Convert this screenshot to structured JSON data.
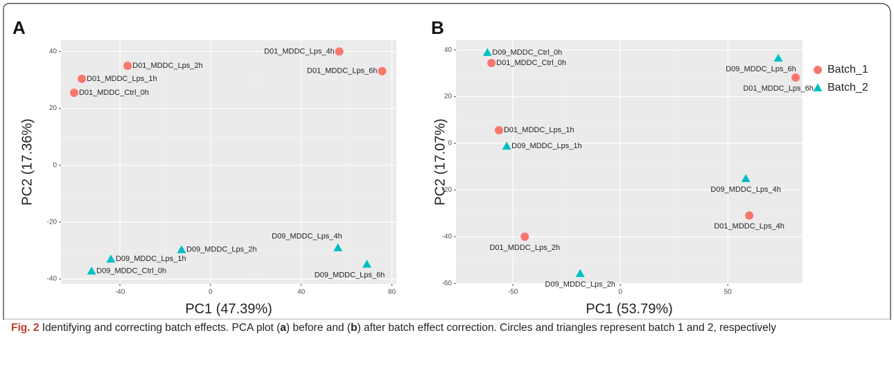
{
  "chart_data": [
    {
      "type": "scatter",
      "panel": "A",
      "xlabel": "PC1 (47.39%)",
      "ylabel": "PC2 (17.36%)",
      "xlim": [
        -66,
        82
      ],
      "ylim": [
        -41.7,
        44
      ],
      "xticks": [
        -40,
        0,
        40,
        80
      ],
      "yticks": [
        -40,
        -20,
        0,
        20,
        40
      ],
      "grid": true,
      "series": [
        {
          "color": "#f8766d",
          "marker": "circle",
          "x": [
            56.8,
            75.7,
            -36.6,
            -56.8,
            -60.2
          ],
          "values": [
            40,
            33.1,
            35,
            30.4,
            25.5
          ],
          "labels": [
            "D01_MDDC_Lps_4h",
            "D01_MDDC_Lps_6h",
            "D01_MDDC_Lps_2h",
            "D01_MDDC_Lps_1h",
            "D01_MDDC_Ctrl_0h"
          ]
        },
        {
          "color": "#00bfc4",
          "marker": "triangle",
          "x": [
            56.2,
            69,
            -12.8,
            -44,
            -52.5
          ],
          "values": [
            -29,
            -34.8,
            -29.7,
            -33,
            -37.2
          ],
          "labels": [
            "D09_MDDC_Lps_4h",
            "D09_MDDC_Lps_6h",
            "D09_MDDC_Lps_2h",
            "D09_MDDC_Lps_1h",
            "D09_MDDC_Ctrl_0h"
          ]
        }
      ]
    },
    {
      "type": "scatter",
      "panel": "B",
      "xlabel": "PC1 (53.79%)",
      "ylabel": "PC2 (17.07%)",
      "xlim": [
        -76.5,
        84.8
      ],
      "ylim": [
        -60.2,
        44.2
      ],
      "xticks": [
        -50,
        0,
        50
      ],
      "yticks": [
        -60,
        -40,
        -20,
        0,
        20,
        40
      ],
      "grid": true,
      "legend": "right",
      "series": [
        {
          "name": "Batch_1",
          "color": "#f8766d",
          "marker": "circle",
          "x": [
            -60,
            -56.5,
            -44.5,
            60,
            81.6
          ],
          "values": [
            34.4,
            5.6,
            -40,
            -30.9,
            28.2
          ],
          "labels": [
            "D01_MDDC_Ctrl_0h",
            "D01_MDDC_Lps_1h",
            "D01_MDDC_Lps_2h",
            "D01_MDDC_Lps_4h",
            "D01_MDDC_Lps_6h"
          ]
        },
        {
          "name": "Batch_2",
          "color": "#00bfc4",
          "marker": "triangle",
          "x": [
            -61.9,
            -52.9,
            -18.7,
            58.4,
            73.5
          ],
          "values": [
            38.9,
            -1.2,
            -55.8,
            -15.1,
            36.5
          ],
          "labels": [
            "D09_MDDC_Ctrl_0h",
            "D09_MDDC_Lps_1h",
            "D09_MDDC_Lps_2h",
            "D09_MDDC_Lps_4h",
            "D09_MDDC_Lps_6h"
          ]
        }
      ]
    }
  ],
  "caption": {
    "label": "Fig. 2",
    "parts": [
      " Identifying and correcting batch effects. PCA plot (",
      "a",
      ") before and (",
      "b",
      ") after batch effect correction. Circles and triangles represent batch 1 and 2, respectively"
    ]
  }
}
